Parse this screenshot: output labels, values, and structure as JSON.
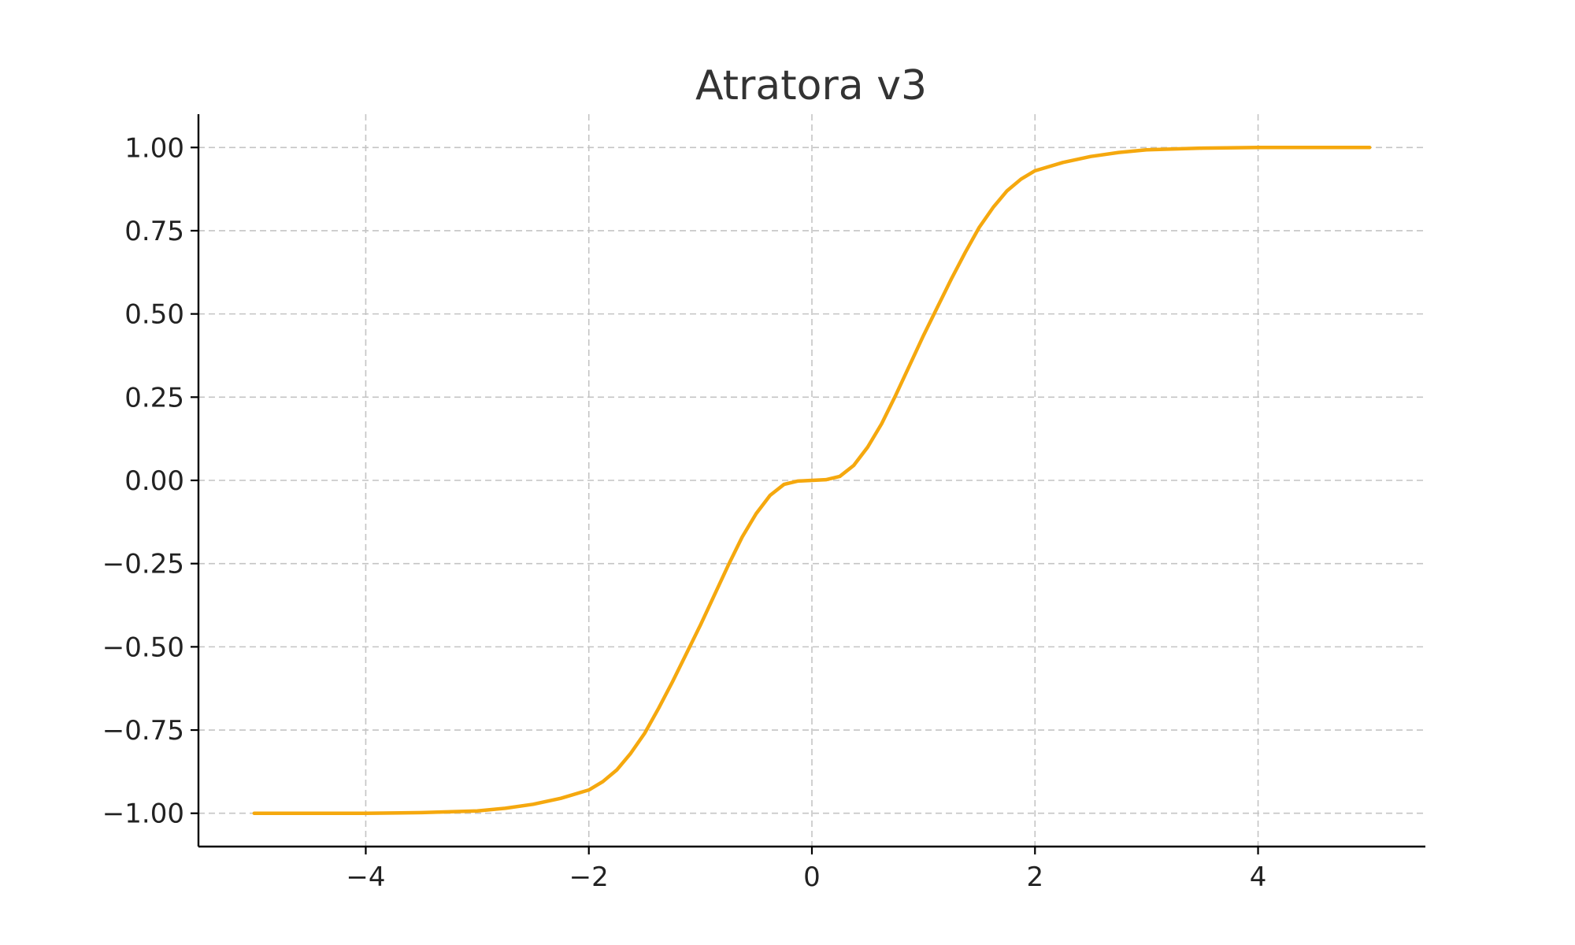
{
  "chart_data": {
    "type": "line",
    "title": "Atratora v3",
    "xlabel": "",
    "ylabel": "",
    "xlim": [
      -5.5,
      5.5
    ],
    "ylim": [
      -1.1,
      1.1
    ],
    "x_ticks": [
      -4,
      -2,
      0,
      2,
      4
    ],
    "x_tick_labels": [
      "−4",
      "−2",
      "0",
      "2",
      "4"
    ],
    "y_ticks": [
      -1.0,
      -0.75,
      -0.5,
      -0.25,
      0.0,
      0.25,
      0.5,
      0.75,
      1.0
    ],
    "y_tick_labels": [
      "−1.00",
      "−0.75",
      "−0.50",
      "−0.25",
      "0.00",
      "0.25",
      "0.50",
      "0.75",
      "1.00"
    ],
    "grid": true,
    "legend": "none",
    "series": [
      {
        "color": "#f5a80e",
        "x": [
          -5.0,
          -4.5,
          -4.0,
          -3.5,
          -3.0,
          -2.75,
          -2.5,
          -2.25,
          -2.0,
          -1.875,
          -1.75,
          -1.625,
          -1.5,
          -1.375,
          -1.25,
          -1.125,
          -1.0,
          -0.875,
          -0.75,
          -0.625,
          -0.5,
          -0.375,
          -0.25,
          -0.125,
          0.0,
          0.125,
          0.25,
          0.375,
          0.5,
          0.625,
          0.75,
          0.875,
          1.0,
          1.125,
          1.25,
          1.375,
          1.5,
          1.625,
          1.75,
          1.875,
          2.0,
          2.25,
          2.5,
          2.75,
          3.0,
          3.5,
          4.0,
          4.5,
          5.0
        ],
        "y": [
          -1.0,
          -1.0,
          -1.0,
          -0.998,
          -0.993,
          -0.985,
          -0.973,
          -0.955,
          -0.93,
          -0.905,
          -0.87,
          -0.82,
          -0.76,
          -0.685,
          -0.605,
          -0.52,
          -0.435,
          -0.345,
          -0.255,
          -0.17,
          -0.1,
          -0.045,
          -0.012,
          -0.002,
          0.0,
          0.002,
          0.012,
          0.045,
          0.1,
          0.17,
          0.255,
          0.345,
          0.435,
          0.52,
          0.605,
          0.685,
          0.76,
          0.82,
          0.87,
          0.905,
          0.93,
          0.955,
          0.973,
          0.985,
          0.993,
          0.998,
          1.0,
          1.0,
          1.0
        ]
      }
    ]
  }
}
